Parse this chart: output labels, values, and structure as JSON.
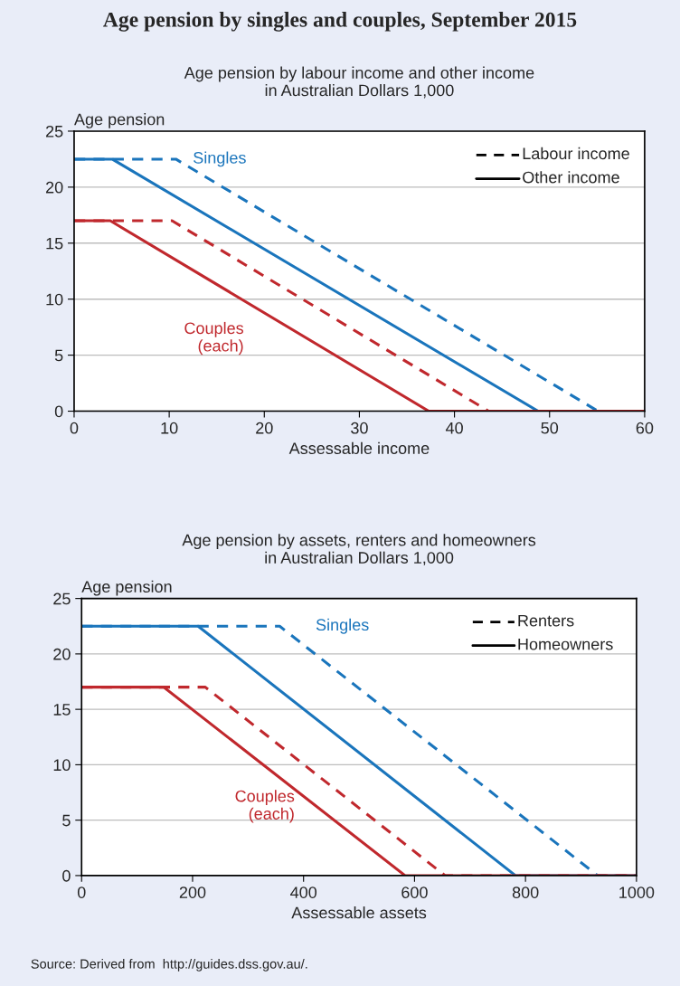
{
  "chart_data": [
    {
      "type": "line",
      "title": "Age pension by singles and couples, September 2015",
      "subtitle": "Age pension by labour income and other income\nin Australian Dollars 1,000",
      "xlabel": "Assessable income",
      "ylabel": "Age pension",
      "xlim": [
        0,
        60
      ],
      "xticks": [
        0,
        10,
        20,
        30,
        40,
        50,
        60
      ],
      "ylim": [
        0,
        25
      ],
      "yticks": [
        0,
        5,
        10,
        15,
        20,
        25
      ],
      "grid": "y",
      "marker": "none",
      "series": [
        {
          "color": "#1a75bc",
          "line_style": "dashed",
          "x": [
            0,
            10.7,
            55.1,
            60
          ],
          "values": [
            22.5,
            22.5,
            0,
            0
          ]
        },
        {
          "color": "#1a75bc",
          "line_style": "solid",
          "x": [
            0,
            4,
            48.8,
            60
          ],
          "values": [
            22.5,
            22.5,
            0,
            0
          ]
        },
        {
          "color": "#c0282d",
          "line_style": "dashed",
          "x": [
            0,
            10.3,
            43.6,
            60
          ],
          "values": [
            17,
            17,
            0,
            0
          ]
        },
        {
          "color": "#c0282d",
          "line_style": "solid",
          "x": [
            0,
            3.8,
            37.3,
            60
          ],
          "values": [
            17,
            17,
            0,
            0
          ]
        }
      ],
      "annotations": [
        "Singles",
        "Couples\n(each)",
        "Labour income",
        "Other income"
      ]
    },
    {
      "type": "line",
      "title": "Age pension by assets, renters and homeowners\nin Australian Dollars 1,000",
      "xlabel": "Assessable assets",
      "ylabel": "Age pension",
      "xlim": [
        0,
        1000
      ],
      "xticks": [
        0,
        200,
        400,
        600,
        800,
        1000
      ],
      "ylim": [
        0,
        25
      ],
      "yticks": [
        0,
        5,
        10,
        15,
        20,
        25
      ],
      "grid": "y",
      "marker": "none",
      "series": [
        {
          "color": "#1a75bc",
          "line_style": "dashed",
          "x": [
            0,
            357,
            930,
            1000
          ],
          "values": [
            22.5,
            22.5,
            0,
            0
          ]
        },
        {
          "color": "#1a75bc",
          "line_style": "solid",
          "x": [
            0,
            210,
            782,
            1000
          ],
          "values": [
            22.5,
            22.5,
            0,
            0
          ]
        },
        {
          "color": "#c0282d",
          "line_style": "dashed",
          "x": [
            0,
            223,
            655,
            1000
          ],
          "values": [
            17,
            17,
            0,
            0
          ]
        },
        {
          "color": "#c0282d",
          "line_style": "solid",
          "x": [
            0,
            148,
            583,
            1000
          ],
          "values": [
            17,
            17,
            0,
            0
          ]
        }
      ],
      "annotations": [
        "Singles",
        "Couples\n(each)",
        "Renters",
        "Homeowners",
        "Source: Derived from  http://guides.dss.gov.au/."
      ]
    }
  ]
}
